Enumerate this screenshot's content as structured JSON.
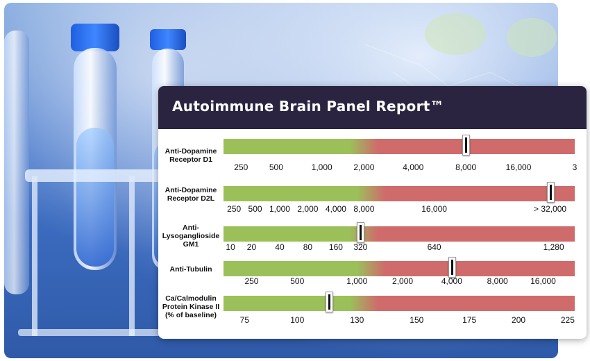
{
  "report": {
    "title": "Autoimmune Brain Panel Report™"
  },
  "rows": [
    {
      "label": "Anti-Dopamine Receptor D1",
      "result_position_fraction": 0.69,
      "ticks": [
        "250",
        "500",
        "1,000",
        "2,000",
        "4,000",
        "8,000",
        "16,000",
        "3"
      ]
    },
    {
      "label": "Anti-Dopamine Receptor D2L",
      "result_position_fraction": 0.93,
      "ticks": [
        "250",
        "500",
        "1,000",
        "2,000",
        "4,000",
        "8,000",
        "16,000",
        "> 32,000"
      ]
    },
    {
      "label": "Anti-Lysoganglioside GM1",
      "result_position_fraction": 0.39,
      "ticks": [
        "10",
        "20",
        "40",
        "80",
        "160",
        "320",
        "640",
        "1,280"
      ]
    },
    {
      "label": "Anti-Tubulin",
      "result_position_fraction": 0.65,
      "ticks": [
        "250",
        "500",
        "1,000",
        "2,000",
        "4,000",
        "8,000",
        "16,000"
      ]
    },
    {
      "label": "Ca/Calmodulin Protein Kinase II (% of baseline)",
      "result_position_fraction": 0.3,
      "ticks": [
        "75",
        "100",
        "130",
        "150",
        "175",
        "200",
        "225"
      ]
    }
  ],
  "colors": {
    "normal_green": "#9bc05a",
    "elevated_red": "#cf6b6b",
    "header_bg": "#2a2440"
  },
  "icons": [
    "test-tube-icon",
    "brain-icon"
  ]
}
